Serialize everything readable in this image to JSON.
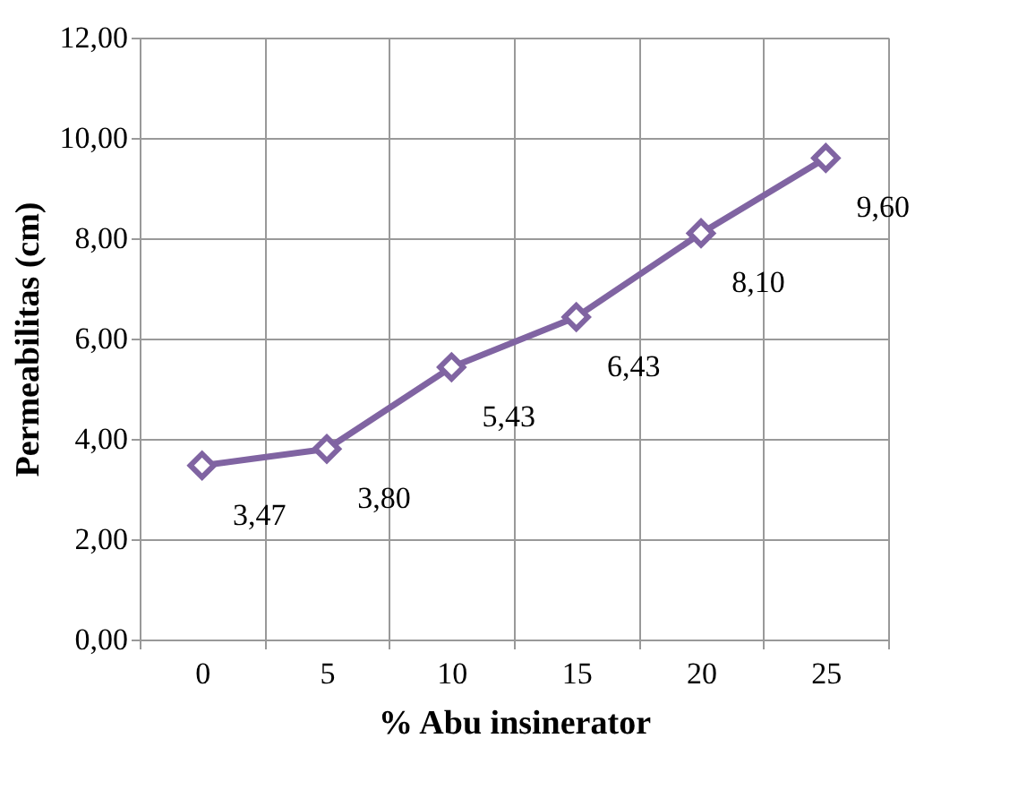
{
  "chart_data": {
    "type": "line",
    "xlabel": "% Abu insinerator",
    "ylabel": "Permeabilitas (cm)",
    "categories": [
      "0",
      "5",
      "10",
      "15",
      "20",
      "25"
    ],
    "series": [
      {
        "color": "#8064a2",
        "values": [
          3.47,
          3.8,
          5.43,
          6.43,
          8.1,
          9.6
        ]
      }
    ],
    "value_labels": [
      "3,47",
      "3,80",
      "5,43",
      "6,43",
      "8,10",
      "9,60"
    ],
    "ylim": [
      0,
      12
    ],
    "yticks": [
      {
        "value": 0,
        "label": "0,00"
      },
      {
        "value": 2,
        "label": "2,00"
      },
      {
        "value": 4,
        "label": "4,00"
      },
      {
        "value": 6,
        "label": "6,00"
      },
      {
        "value": 8,
        "label": "8,00"
      },
      {
        "value": 10,
        "label": "10,00"
      },
      {
        "value": 12,
        "label": "12,00"
      }
    ],
    "grid": true,
    "marker": "diamond",
    "line_style": "solid"
  }
}
